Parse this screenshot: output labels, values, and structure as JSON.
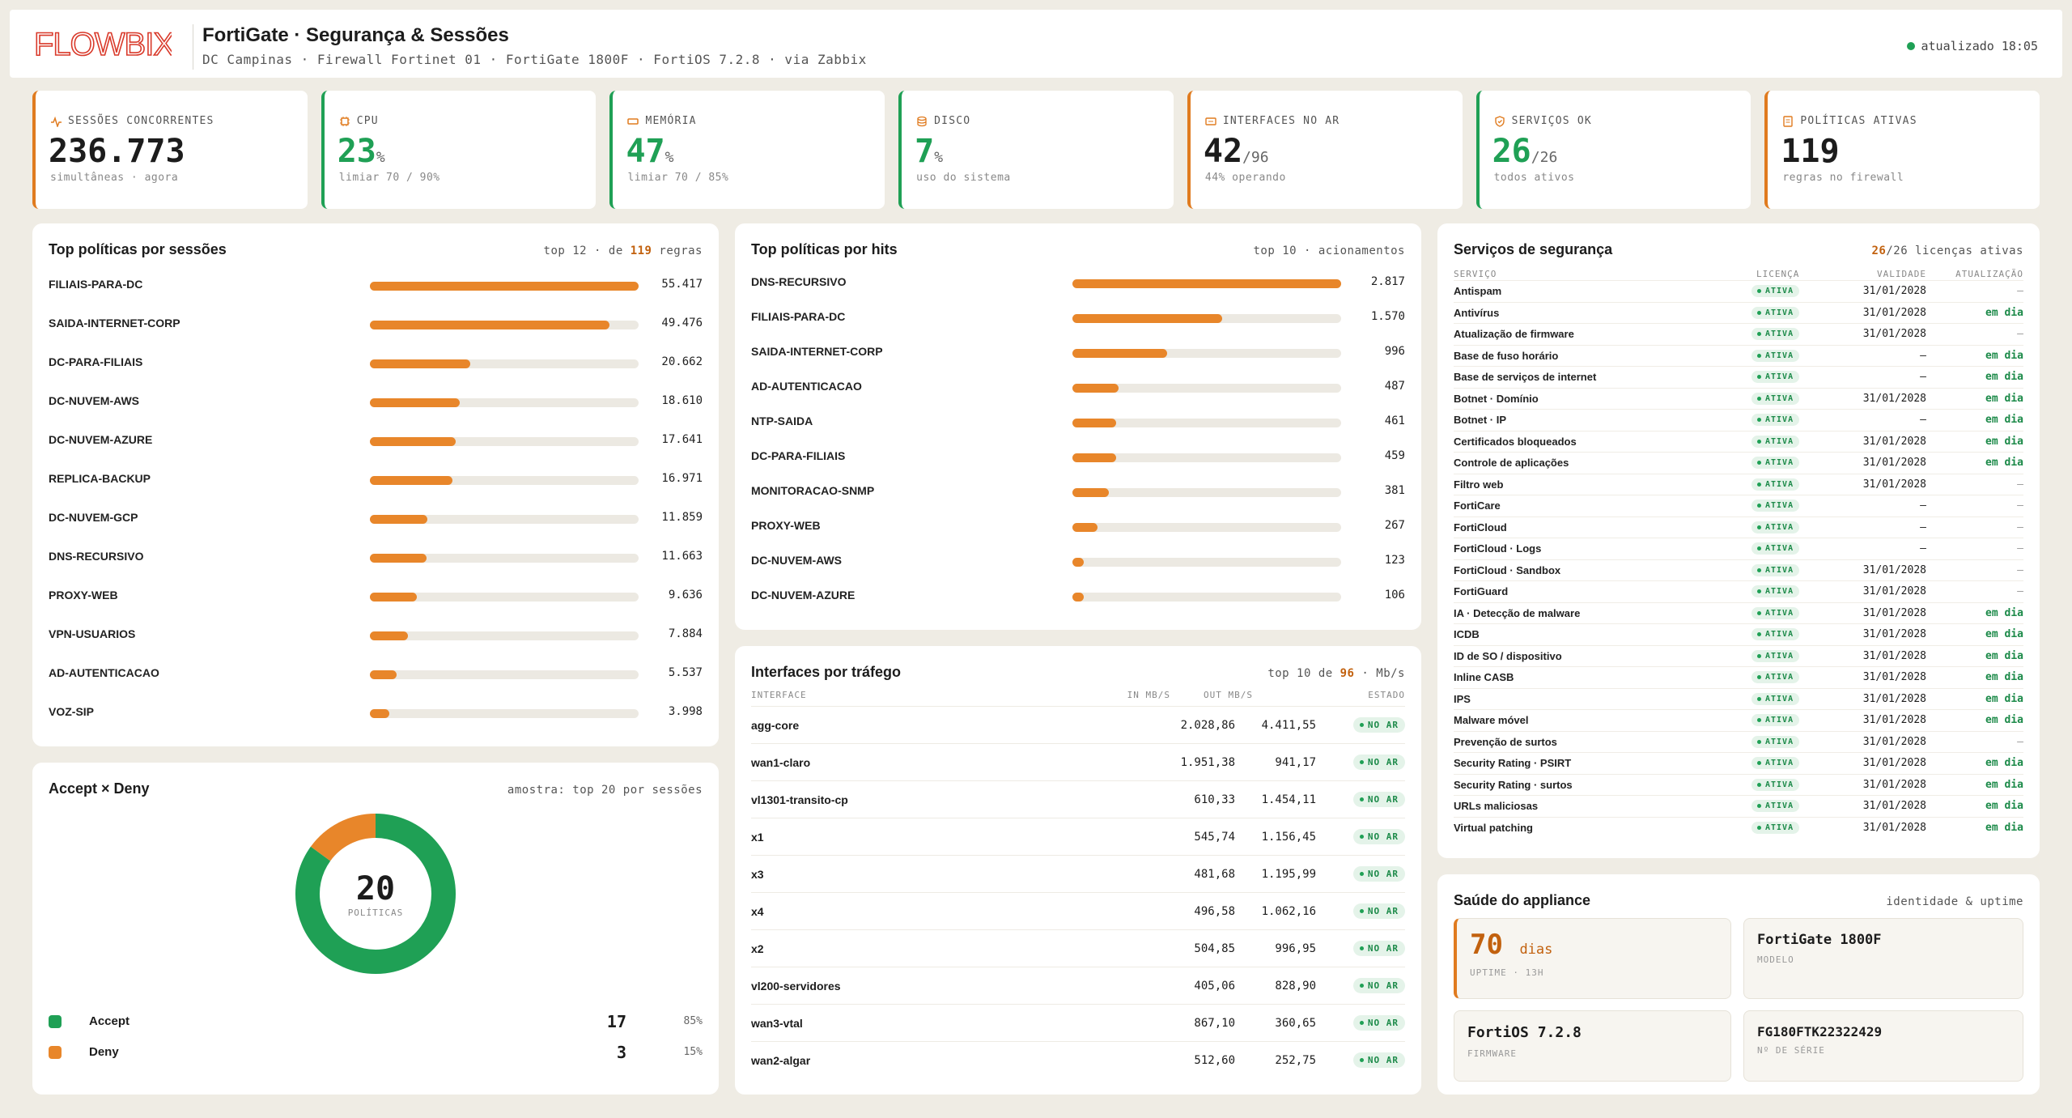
{
  "header": {
    "logo_text": "FLOWBIX",
    "title": "FortiGate · Segurança & Sessões",
    "subtitle": "DC Campinas · Firewall Fortinet 01 · FortiGate 1800F · FortiOS 7.2.8 · via Zabbix",
    "updated": "atualizado 18:05"
  },
  "colors": {
    "accent": "#e8862a",
    "green": "#1fa055",
    "logo": "#d93a2b"
  },
  "kpis": [
    {
      "label": "SESSÕES CONCORRENTES",
      "icon": "activity-icon",
      "value": "236.773",
      "unit": "",
      "sub": "simultâneas · agora",
      "color": "orange"
    },
    {
      "label": "CPU",
      "icon": "cpu-icon",
      "value": "23",
      "unit": "%",
      "sub": "limiar 70 / 90%",
      "color": "green"
    },
    {
      "label": "MEMÓRIA",
      "icon": "memory-icon",
      "value": "47",
      "unit": "%",
      "sub": "limiar 70 / 85%",
      "color": "green"
    },
    {
      "label": "DISCO",
      "icon": "database-icon",
      "value": "7",
      "unit": "%",
      "sub": "uso do sistema",
      "color": "green"
    },
    {
      "label": "INTERFACES NO AR",
      "icon": "network-icon",
      "value": "42",
      "unit": "/96",
      "sub": "44% operando",
      "color": "orange"
    },
    {
      "label": "SERVIÇOS OK",
      "icon": "shield-icon",
      "value": "26",
      "unit": "/26",
      "sub": "todos ativos",
      "color": "green"
    },
    {
      "label": "POLÍTICAS ATIVAS",
      "icon": "document-icon",
      "value": "119",
      "unit": "",
      "sub": "regras no firewall",
      "color": "orange"
    }
  ],
  "sessions": {
    "title": "Top políticas por sessões",
    "meta_pre": "top 12 · de ",
    "meta_hl": "119",
    "meta_post": " regras",
    "max": 55417,
    "items": [
      {
        "name": "FILIAIS-PARA-DC",
        "value": 55417,
        "label": "55.417"
      },
      {
        "name": "SAIDA-INTERNET-CORP",
        "value": 49476,
        "label": "49.476"
      },
      {
        "name": "DC-PARA-FILIAIS",
        "value": 20662,
        "label": "20.662"
      },
      {
        "name": "DC-NUVEM-AWS",
        "value": 18610,
        "label": "18.610"
      },
      {
        "name": "DC-NUVEM-AZURE",
        "value": 17641,
        "label": "17.641"
      },
      {
        "name": "REPLICA-BACKUP",
        "value": 16971,
        "label": "16.971"
      },
      {
        "name": "DC-NUVEM-GCP",
        "value": 11859,
        "label": "11.859"
      },
      {
        "name": "DNS-RECURSIVO",
        "value": 11663,
        "label": "11.663"
      },
      {
        "name": "PROXY-WEB",
        "value": 9636,
        "label": "9.636"
      },
      {
        "name": "VPN-USUARIOS",
        "value": 7884,
        "label": "7.884"
      },
      {
        "name": "AD-AUTENTICACAO",
        "value": 5537,
        "label": "5.537"
      },
      {
        "name": "VOZ-SIP",
        "value": 3998,
        "label": "3.998"
      }
    ]
  },
  "hits": {
    "title": "Top políticas por hits",
    "meta": "top 10 · acionamentos",
    "max": 2817,
    "items": [
      {
        "name": "DNS-RECURSIVO",
        "value": 2817,
        "label": "2.817"
      },
      {
        "name": "FILIAIS-PARA-DC",
        "value": 1570,
        "label": "1.570"
      },
      {
        "name": "SAIDA-INTERNET-CORP",
        "value": 996,
        "label": "996"
      },
      {
        "name": "AD-AUTENTICACAO",
        "value": 487,
        "label": "487"
      },
      {
        "name": "NTP-SAIDA",
        "value": 461,
        "label": "461"
      },
      {
        "name": "DC-PARA-FILIAIS",
        "value": 459,
        "label": "459"
      },
      {
        "name": "MONITORACAO-SNMP",
        "value": 381,
        "label": "381"
      },
      {
        "name": "PROXY-WEB",
        "value": 267,
        "label": "267"
      },
      {
        "name": "DC-NUVEM-AWS",
        "value": 123,
        "label": "123"
      },
      {
        "name": "DC-NUVEM-AZURE",
        "value": 106,
        "label": "106"
      }
    ]
  },
  "accept_deny": {
    "title": "Accept × Deny",
    "meta": "amostra: top 20 por sessões",
    "center_value": "20",
    "center_label": "POLÍTICAS",
    "items": [
      {
        "name": "Accept",
        "count": 17,
        "count_label": "17",
        "pct": "85%",
        "color": "#1fa055"
      },
      {
        "name": "Deny",
        "count": 3,
        "count_label": "3",
        "pct": "15%",
        "color": "#e8862a"
      }
    ]
  },
  "interfaces": {
    "title": "Interfaces por tráfego",
    "meta_pre": "top 10 de ",
    "meta_hl": "96",
    "meta_post": " · Mb/s",
    "headers": {
      "name": "INTERFACE",
      "in": "IN MB/S",
      "out": "OUT MB/S",
      "status": "ESTADO"
    },
    "rows": [
      {
        "name": "agg-core",
        "in": "2.028,86",
        "out": "4.411,55",
        "status": "NO AR"
      },
      {
        "name": "wan1-claro",
        "in": "1.951,38",
        "out": "941,17",
        "status": "NO AR"
      },
      {
        "name": "vl1301-transito-cp",
        "in": "610,33",
        "out": "1.454,11",
        "status": "NO AR"
      },
      {
        "name": "x1",
        "in": "545,74",
        "out": "1.156,45",
        "status": "NO AR"
      },
      {
        "name": "x3",
        "in": "481,68",
        "out": "1.195,99",
        "status": "NO AR"
      },
      {
        "name": "x4",
        "in": "496,58",
        "out": "1.062,16",
        "status": "NO AR"
      },
      {
        "name": "x2",
        "in": "504,85",
        "out": "996,95",
        "status": "NO AR"
      },
      {
        "name": "vl200-servidores",
        "in": "405,06",
        "out": "828,90",
        "status": "NO AR"
      },
      {
        "name": "wan3-vtal",
        "in": "867,10",
        "out": "360,65",
        "status": "NO AR"
      },
      {
        "name": "wan2-algar",
        "in": "512,60",
        "out": "252,75",
        "status": "NO AR"
      }
    ]
  },
  "services": {
    "title": "Serviços de segurança",
    "meta_hl": "26",
    "meta_post": "/26 licenças ativas",
    "headers": {
      "name": "SERVIÇO",
      "license": "LICENÇA",
      "validity": "VALIDADE",
      "update": "ATUALIZAÇÃO"
    },
    "rows": [
      {
        "name": "Antispam",
        "license": "ATIVA",
        "validity": "31/01/2028",
        "update": "—"
      },
      {
        "name": "Antivírus",
        "license": "ATIVA",
        "validity": "31/01/2028",
        "update": "em dia"
      },
      {
        "name": "Atualização de firmware",
        "license": "ATIVA",
        "validity": "31/01/2028",
        "update": "—"
      },
      {
        "name": "Base de fuso horário",
        "license": "ATIVA",
        "validity": "—",
        "update": "em dia"
      },
      {
        "name": "Base de serviços de internet",
        "license": "ATIVA",
        "validity": "—",
        "update": "em dia"
      },
      {
        "name": "Botnet · Domínio",
        "license": "ATIVA",
        "validity": "31/01/2028",
        "update": "em dia"
      },
      {
        "name": "Botnet · IP",
        "license": "ATIVA",
        "validity": "—",
        "update": "em dia"
      },
      {
        "name": "Certificados bloqueados",
        "license": "ATIVA",
        "validity": "31/01/2028",
        "update": "em dia"
      },
      {
        "name": "Controle de aplicações",
        "license": "ATIVA",
        "validity": "31/01/2028",
        "update": "em dia"
      },
      {
        "name": "Filtro web",
        "license": "ATIVA",
        "validity": "31/01/2028",
        "update": "—"
      },
      {
        "name": "FortiCare",
        "license": "ATIVA",
        "validity": "—",
        "update": "—"
      },
      {
        "name": "FortiCloud",
        "license": "ATIVA",
        "validity": "—",
        "update": "—"
      },
      {
        "name": "FortiCloud · Logs",
        "license": "ATIVA",
        "validity": "—",
        "update": "—"
      },
      {
        "name": "FortiCloud · Sandbox",
        "license": "ATIVA",
        "validity": "31/01/2028",
        "update": "—"
      },
      {
        "name": "FortiGuard",
        "license": "ATIVA",
        "validity": "31/01/2028",
        "update": "—"
      },
      {
        "name": "IA · Detecção de malware",
        "license": "ATIVA",
        "validity": "31/01/2028",
        "update": "em dia"
      },
      {
        "name": "ICDB",
        "license": "ATIVA",
        "validity": "31/01/2028",
        "update": "em dia"
      },
      {
        "name": "ID de SO / dispositivo",
        "license": "ATIVA",
        "validity": "31/01/2028",
        "update": "em dia"
      },
      {
        "name": "Inline CASB",
        "license": "ATIVA",
        "validity": "31/01/2028",
        "update": "em dia"
      },
      {
        "name": "IPS",
        "license": "ATIVA",
        "validity": "31/01/2028",
        "update": "em dia"
      },
      {
        "name": "Malware móvel",
        "license": "ATIVA",
        "validity": "31/01/2028",
        "update": "em dia"
      },
      {
        "name": "Prevenção de surtos",
        "license": "ATIVA",
        "validity": "31/01/2028",
        "update": "—"
      },
      {
        "name": "Security Rating · PSIRT",
        "license": "ATIVA",
        "validity": "31/01/2028",
        "update": "em dia"
      },
      {
        "name": "Security Rating · surtos",
        "license": "ATIVA",
        "validity": "31/01/2028",
        "update": "em dia"
      },
      {
        "name": "URLs maliciosas",
        "license": "ATIVA",
        "validity": "31/01/2028",
        "update": "em dia"
      },
      {
        "name": "Virtual patching",
        "license": "ATIVA",
        "validity": "31/01/2028",
        "update": "em dia"
      }
    ]
  },
  "appliance": {
    "title": "Saúde do appliance",
    "meta": "identidade & uptime",
    "uptime_value": "70",
    "uptime_unit": "dias",
    "uptime_sub": "UPTIME · 13H",
    "model": "FortiGate 1800F",
    "model_label": "MODELO",
    "firmware": "FortiOS 7.2.8",
    "firmware_label": "FIRMWARE",
    "serial": "FG180FTK22322429",
    "serial_label": "Nº DE SÉRIE"
  }
}
